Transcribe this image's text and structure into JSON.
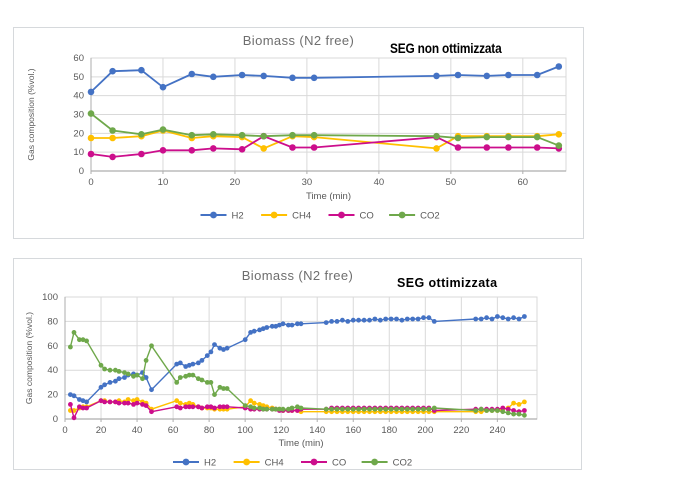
{
  "page": {
    "background": "#ffffff"
  },
  "colors": {
    "grid": "#d9d9d9",
    "plot_border": "#d9d9d9",
    "axis": "#aeaeae",
    "tick_text": "#595959",
    "title_text": "#6e6e6e",
    "annotation_text": "#000000",
    "h2": "#4472C4",
    "ch4": "#FFC000",
    "co": "#CC0E8C",
    "co2": "#6FA84B"
  },
  "chart_data": [
    {
      "id": "top",
      "type": "line",
      "title": "Biomass (N2 free)",
      "annotation": "SEG non ottimizzata",
      "xlabel": "Time (min)",
      "ylabel": "Gas composition (%vol.)",
      "legend_position": "bottom",
      "grid": true,
      "xlim": [
        0,
        66
      ],
      "ylim": [
        0,
        60
      ],
      "xticks": [
        0,
        10,
        20,
        30,
        40,
        50,
        60
      ],
      "yticks": [
        0,
        10,
        20,
        30,
        40,
        50,
        60
      ],
      "x": [
        0,
        3,
        7,
        10,
        14,
        17,
        21,
        24,
        28,
        31,
        48,
        51,
        55,
        58,
        62,
        65
      ],
      "series": [
        {
          "name": "H2",
          "color": "#4472C4",
          "values": [
            42,
            53,
            53.5,
            44.5,
            51.5,
            50,
            51,
            50.5,
            49.5,
            49.5,
            50.5,
            51,
            50.5,
            51,
            51,
            55.5
          ]
        },
        {
          "name": "CH4",
          "color": "#FFC000",
          "values": [
            17.5,
            17.5,
            18.5,
            21.5,
            17.5,
            18.5,
            18,
            12,
            18.5,
            18,
            12,
            18.5,
            18.5,
            18.5,
            18.5,
            19.5
          ]
        },
        {
          "name": "CO",
          "color": "#CC0E8C",
          "values": [
            9,
            7.5,
            9,
            11,
            11,
            12,
            11.5,
            18.5,
            12.5,
            12.5,
            18,
            12.5,
            12.5,
            12.5,
            12.5,
            12
          ]
        },
        {
          "name": "CO2",
          "color": "#6FA84B",
          "values": [
            30.5,
            21.5,
            19.5,
            22,
            19,
            19.5,
            19,
            18.5,
            19,
            19,
            18.5,
            17.5,
            18,
            18,
            18,
            13.5
          ]
        }
      ]
    },
    {
      "id": "bottom",
      "type": "line",
      "title": "Biomass (N2 free)",
      "annotation": "SEG ottimizzata",
      "xlabel": "Time (min)",
      "ylabel": "Gas composition (%vol.)",
      "legend_position": "bottom",
      "grid": true,
      "xlim": [
        0,
        262
      ],
      "ylim": [
        0,
        100
      ],
      "xticks": [
        0,
        20,
        40,
        60,
        80,
        100,
        120,
        140,
        160,
        180,
        200,
        220,
        240
      ],
      "yticks": [
        0,
        20,
        40,
        60,
        80,
        100
      ],
      "x": [
        3,
        5,
        8,
        10,
        12,
        20,
        22,
        25,
        28,
        30,
        33,
        35,
        38,
        40,
        43,
        45,
        48,
        62,
        64,
        67,
        69,
        71,
        74,
        76,
        79,
        81,
        83,
        86,
        88,
        90,
        100,
        103,
        105,
        108,
        110,
        112,
        115,
        117,
        119,
        121,
        124,
        126,
        129,
        131,
        145,
        148,
        151,
        154,
        157,
        160,
        163,
        166,
        169,
        172,
        175,
        178,
        181,
        184,
        187,
        190,
        193,
        196,
        199,
        202,
        205,
        228,
        231,
        234,
        237,
        240,
        243,
        246,
        249,
        252,
        255
      ],
      "series": [
        {
          "name": "H2",
          "color": "#4472C4",
          "values": [
            20,
            19,
            16,
            15,
            14,
            26,
            28,
            30,
            31,
            33,
            34,
            36,
            37,
            36,
            38,
            34,
            24,
            45,
            46,
            43,
            44,
            45,
            46,
            48,
            52,
            55,
            61,
            58,
            57,
            58,
            65,
            71,
            72,
            73,
            74,
            75,
            76,
            76,
            77,
            78,
            77,
            77,
            78,
            78,
            79,
            80,
            80,
            81,
            80,
            81,
            81,
            81,
            81,
            82,
            81,
            82,
            82,
            82,
            81,
            82,
            82,
            82,
            83,
            83,
            80,
            82,
            82,
            83,
            82,
            84,
            83,
            82,
            83,
            82,
            84
          ]
        },
        {
          "name": "CH4",
          "color": "#FFC000",
          "values": [
            7,
            7,
            9,
            10,
            10,
            15,
            15,
            14,
            14,
            15,
            14,
            16,
            15,
            16,
            14,
            13,
            8,
            15,
            13,
            12,
            13,
            12,
            10,
            9,
            9,
            9,
            8,
            8,
            8,
            8,
            10,
            15,
            13,
            12,
            11,
            10,
            9,
            8,
            8,
            7,
            7,
            7,
            7,
            6,
            6,
            6,
            6,
            6,
            6,
            6,
            6,
            6,
            6,
            6,
            6,
            6,
            6,
            6,
            6,
            6,
            6,
            6,
            6,
            6,
            6,
            6,
            6,
            7,
            7,
            7,
            8,
            9,
            13,
            12,
            14
          ]
        },
        {
          "name": "CO",
          "color": "#CC0E8C",
          "values": [
            12,
            1,
            10,
            9,
            9,
            15,
            14,
            14,
            14,
            13,
            13,
            13,
            12,
            13,
            12,
            11,
            6,
            10,
            9,
            10,
            10,
            10,
            10,
            9,
            10,
            10,
            9,
            10,
            10,
            10,
            9,
            8,
            8,
            8,
            8,
            8,
            8,
            8,
            7,
            7,
            7,
            7,
            7,
            8,
            8,
            9,
            9,
            9,
            9,
            9,
            9,
            9,
            9,
            9,
            9,
            9,
            9,
            9,
            9,
            9,
            9,
            9,
            9,
            9,
            7,
            8,
            8,
            8,
            8,
            8,
            9,
            8,
            7,
            6,
            7
          ]
        },
        {
          "name": "CO2",
          "color": "#6FA84B",
          "values": [
            59,
            71,
            65,
            65,
            64,
            44,
            41,
            40,
            40,
            39,
            38,
            37,
            35,
            36,
            33,
            48,
            60,
            30,
            34,
            35,
            36,
            36,
            33,
            32,
            30,
            30,
            20,
            26,
            25,
            25,
            11,
            10,
            9,
            9,
            8,
            8,
            8,
            8,
            8,
            8,
            8,
            9,
            10,
            9,
            8,
            8,
            8,
            8,
            8,
            8,
            8,
            8,
            8,
            8,
            8,
            8,
            8,
            8,
            8,
            8,
            8,
            8,
            8,
            8,
            9,
            7,
            8,
            7,
            7,
            7,
            6,
            5,
            4,
            4,
            3
          ]
        }
      ]
    }
  ]
}
